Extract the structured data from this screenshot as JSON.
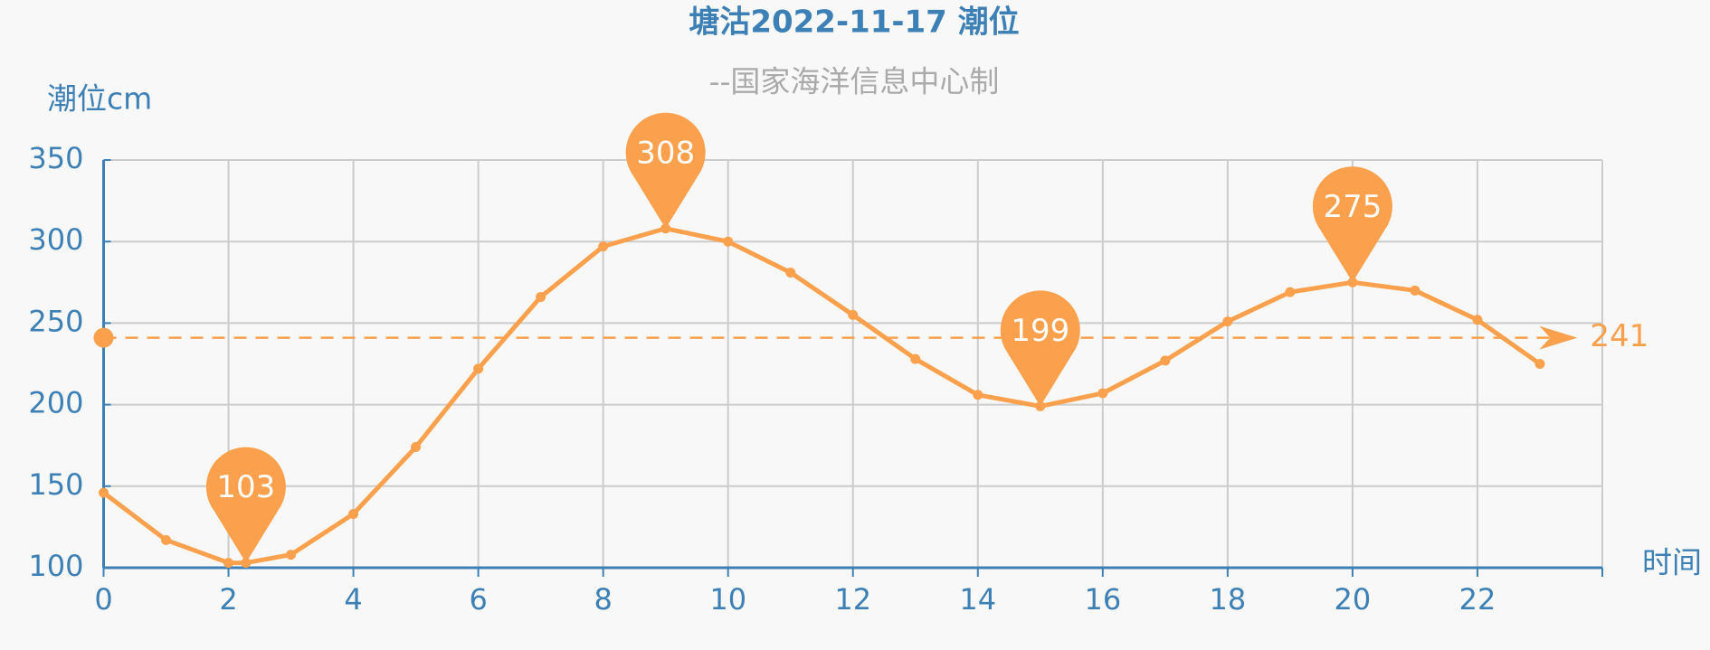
{
  "chart_data": {
    "type": "line",
    "title": "塘沽2022-11-17 潮位",
    "subtitle": "--国家海洋信息中心制",
    "y_axis_label": "潮位cm",
    "x_axis_label": "时间",
    "x": [
      0,
      1,
      2,
      2.28,
      3,
      4,
      5,
      6,
      7,
      8,
      9,
      10,
      11,
      12,
      13,
      14,
      15,
      16,
      17,
      18,
      19,
      20,
      21,
      22,
      23
    ],
    "series": [
      {
        "color": "#fba14d",
        "values": [
          146,
          117,
          103,
          103,
          108,
          133,
          174,
          222,
          266,
          297,
          308,
          300,
          281,
          255,
          228,
          206,
          199,
          207,
          227,
          251,
          269,
          275,
          270,
          252,
          225
        ]
      }
    ],
    "mark_points": [
      {
        "x": 2.28,
        "value": 103
      },
      {
        "x": 9,
        "value": 308
      },
      {
        "x": 15,
        "value": 199
      },
      {
        "x": 20,
        "value": 275
      }
    ],
    "mean_line": 241,
    "xlim": [
      0,
      24
    ],
    "xticks": [
      0,
      2,
      4,
      6,
      8,
      10,
      12,
      14,
      16,
      18,
      20,
      22
    ],
    "ylim": [
      100,
      350
    ],
    "yticks": [
      100,
      150,
      200,
      250,
      300,
      350
    ],
    "grid": true
  }
}
